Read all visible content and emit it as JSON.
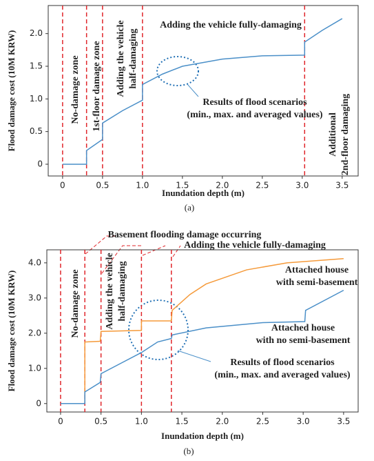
{
  "chart_data": [
    {
      "type": "line",
      "caption": "(a)",
      "x_label": "Inundation depth (m)",
      "y_label": "Flood damage cost (10M KRW)",
      "xlim": [
        -0.18,
        3.7
      ],
      "ylim": [
        -0.18,
        2.43
      ],
      "xticks": [
        0,
        0.5,
        {
          "value": 1,
          "label": "1.0"
        },
        1.5,
        {
          "value": 2,
          "label": "2.0"
        },
        2.5,
        {
          "value": 3,
          "label": "3.0"
        },
        3.5
      ],
      "yticks": [
        0,
        0.5,
        {
          "value": 1,
          "label": "1.0"
        },
        1.5,
        {
          "value": 2,
          "label": "2.0"
        }
      ],
      "series": [
        {
          "color": "#4a8fc8",
          "x": [
            0,
            0.3,
            0.3,
            0.5,
            0.5,
            0.75,
            1.0,
            1.0,
            1.25,
            1.5,
            2.0,
            2.5,
            3.03,
            3.03,
            3.25,
            3.5
          ],
          "values": [
            0,
            0,
            0.21,
            0.38,
            0.63,
            0.82,
            0.98,
            1.22,
            1.38,
            1.5,
            1.61,
            1.66,
            1.67,
            1.87,
            2.05,
            2.23
          ]
        }
      ],
      "dividers": [
        0,
        0.3,
        0.5,
        1.0,
        3.03
      ],
      "divider_color": "#e0252a",
      "annotations": [
        [
          "No-damage zone"
        ],
        [
          "1st-floor damage zone"
        ],
        [
          "Adding the vehicle",
          "half-damaging"
        ],
        [
          "Adding the vehicle fully-damaging"
        ],
        [
          "Results of flood scenarios",
          "(min., max. and averaged values)"
        ],
        [
          "Additional",
          "2nd-floor damaging"
        ]
      ]
    },
    {
      "type": "line",
      "caption": "(b)",
      "x_label": "Inundation depth (m)",
      "y_label": "Flood damage cost (10M KRW)",
      "xlim": [
        -0.17,
        3.68
      ],
      "ylim": [
        -0.24,
        4.37
      ],
      "xticks": [
        0,
        0.5,
        {
          "value": 1,
          "label": "1.0"
        },
        1.5,
        {
          "value": 2,
          "label": "2.0"
        },
        2.5,
        {
          "value": 3,
          "label": "3.0"
        },
        3.5
      ],
      "yticks": [
        0,
        {
          "value": 1,
          "label": "1.0"
        },
        {
          "value": 2,
          "label": "2.0"
        },
        {
          "value": 3,
          "label": "3.0"
        },
        {
          "value": 4,
          "label": "4.0"
        }
      ],
      "series": [
        {
          "color": "#f59a3a",
          "x": [
            0,
            0.3,
            0.3,
            0.49,
            0.5,
            1.0,
            1.0,
            1.37,
            1.38,
            1.6,
            1.8,
            2.3,
            2.8,
            3.5
          ],
          "values": [
            0,
            0,
            1.75,
            1.77,
            2.05,
            2.08,
            2.35,
            2.35,
            2.65,
            3.1,
            3.4,
            3.8,
            4.0,
            4.12
          ]
        },
        {
          "color": "#4a8fc8",
          "x": [
            0,
            0.3,
            0.3,
            0.49,
            0.5,
            0.75,
            1.0,
            1.2,
            1.37,
            1.38,
            1.8,
            2.5,
            3.02,
            3.03,
            3.5
          ],
          "values": [
            0,
            0,
            0.33,
            0.6,
            0.85,
            1.15,
            1.45,
            1.75,
            1.85,
            1.95,
            2.15,
            2.3,
            2.33,
            2.65,
            3.22
          ]
        }
      ],
      "dividers": [
        0,
        0.3,
        0.5,
        1.0,
        1.37
      ],
      "divider_color": "#e0252a",
      "annotations": [
        [
          "Basement flooding damage occurring"
        ],
        [
          "Adding the vehicle fully-damaging"
        ],
        [
          "No-damage zone"
        ],
        [
          "Adding the vehicle",
          "half-damaging"
        ],
        [
          "Attached house",
          "with semi-basement"
        ],
        [
          "Attached house",
          "with no semi-basement"
        ],
        [
          "Results of flood scenarios",
          "(min., max. and averaged values)"
        ]
      ]
    }
  ]
}
